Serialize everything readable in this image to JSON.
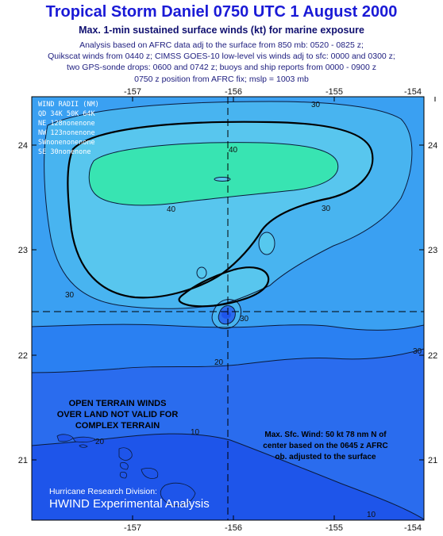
{
  "header": {
    "title": "Tropical Storm Daniel  0750 UTC 1 August 2000",
    "subtitle": "Max. 1-min sustained surface winds (kt) for marine exposure",
    "desc": [
      "Analysis based on AFRC data adj to the surface from 850 mb: 0520 - 0825 z;",
      "Quikscat winds from 0440 z; CIMSS GOES-10 low-level vis winds adj to sfc: 0000 and 0300 z;",
      "two GPS-sonde drops: 0600 and 0742 z; buoys and ship reports from 0000 - 0900 z",
      "0750 z position from AFRC fix; mslp = 1003 mb"
    ]
  },
  "axes": {
    "lon_ticks": [
      "-157",
      "-156",
      "-155",
      "-154"
    ],
    "lat_ticks": [
      "24",
      "23",
      "22",
      "21"
    ]
  },
  "wind_radii": {
    "title": "WIND RADII (NM)",
    "header": "QD 34K 50K 64K",
    "rows": [
      "NE 128nonenone",
      "NW 123nonenone",
      "SWnonenonenone",
      "SE  30nonenone"
    ]
  },
  "contour_labels": [
    "30",
    "40",
    "40",
    "30",
    "30",
    "30",
    "30",
    "20",
    "20",
    "10",
    "10"
  ],
  "terrain_note": [
    "OPEN TERRAIN WINDS",
    "OVER LAND NOT VALID FOR",
    "COMPLEX TERRAIN"
  ],
  "max_wind_note": [
    "Max. Sfc. Wind: 50 kt 78 nm N of",
    "center based on the 0645 z AFRC",
    "ob. adjusted to the surface"
  ],
  "credit": {
    "line1": "Hurricane Research Division:",
    "line2": "HWIND Experimental Analysis"
  },
  "colors": {
    "outer": "#1e55ea",
    "band20": "#2a78f0",
    "band30": "#45a6f2",
    "band40": "#56c8ee",
    "core": "#36e6b0"
  }
}
